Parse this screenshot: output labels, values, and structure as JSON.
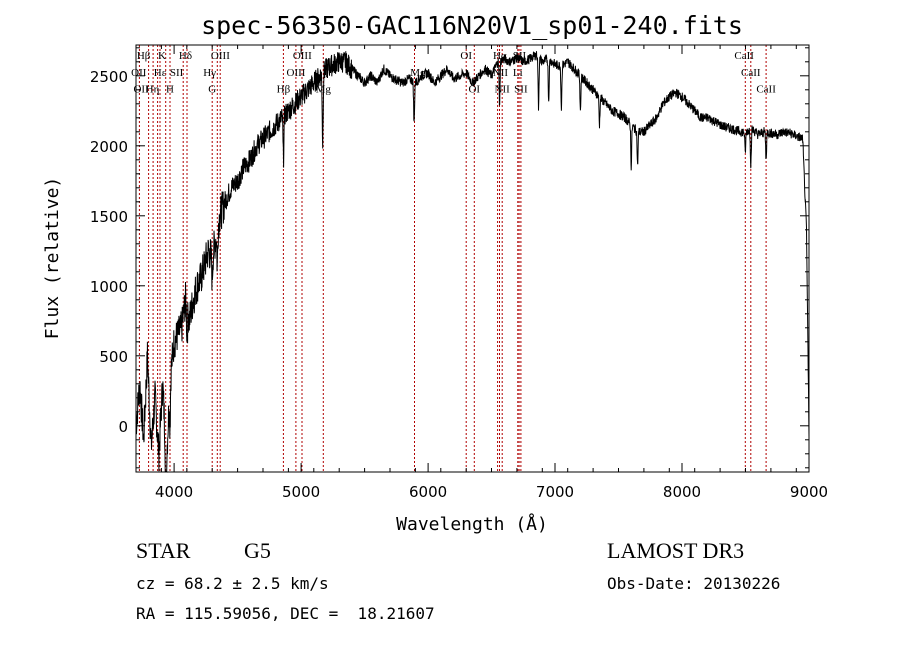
{
  "chart_data": {
    "type": "line",
    "title": "spec-56350-GAC116N20V1_sp01-240.fits",
    "xlabel": "Wavelength (Å)",
    "ylabel": "Flux (relative)",
    "xlim": [
      3700,
      9000
    ],
    "ylim": [
      -330,
      2720
    ],
    "xticks": [
      4000,
      5000,
      6000,
      7000,
      8000,
      9000
    ],
    "xtick_labels": [
      "4000",
      "5000",
      "6000",
      "7000",
      "8000",
      "9000"
    ],
    "yticks": [
      0,
      500,
      1000,
      1500,
      2000,
      2500
    ],
    "ytick_labels": [
      "0",
      "500",
      "1000",
      "1500",
      "2000",
      "2500"
    ],
    "series": [
      {
        "name": "flux",
        "x": [
          3700,
          3730,
          3760,
          3790,
          3820,
          3850,
          3880,
          3910,
          3940,
          3970,
          4000,
          4030,
          4060,
          4090,
          4120,
          4150,
          4180,
          4210,
          4240,
          4270,
          4300,
          4330,
          4360,
          4400,
          4450,
          4500,
          4550,
          4600,
          4650,
          4700,
          4750,
          4800,
          4850,
          4900,
          4950,
          5000,
          5050,
          5100,
          5150,
          5200,
          5250,
          5300,
          5350,
          5400,
          5450,
          5500,
          5550,
          5600,
          5650,
          5700,
          5750,
          5800,
          5850,
          5900,
          5950,
          6000,
          6050,
          6100,
          6150,
          6200,
          6250,
          6300,
          6350,
          6400,
          6450,
          6500,
          6550,
          6600,
          6650,
          6700,
          6750,
          6800,
          6850,
          6900,
          6950,
          7000,
          7050,
          7100,
          7150,
          7200,
          7250,
          7300,
          7350,
          7400,
          7450,
          7500,
          7550,
          7600,
          7650,
          7700,
          7750,
          7800,
          7850,
          7900,
          7950,
          8000,
          8050,
          8100,
          8150,
          8200,
          8250,
          8300,
          8350,
          8400,
          8450,
          8500,
          8550,
          8600,
          8650,
          8700,
          8750,
          8800,
          8850,
          8900,
          8950,
          8980,
          9000
        ],
        "y": [
          0,
          300,
          -100,
          500,
          -150,
          200,
          -200,
          300,
          -250,
          350,
          600,
          650,
          700,
          900,
          750,
          900,
          1000,
          1050,
          1150,
          1250,
          1200,
          1350,
          1500,
          1600,
          1700,
          1750,
          1850,
          1900,
          2000,
          2050,
          2100,
          2150,
          2200,
          2250,
          2300,
          2350,
          2400,
          2450,
          2500,
          2550,
          2580,
          2600,
          2600,
          2550,
          2500,
          2450,
          2500,
          2450,
          2550,
          2500,
          2470,
          2450,
          2480,
          2450,
          2500,
          2520,
          2450,
          2500,
          2550,
          2480,
          2500,
          2520,
          2450,
          2500,
          2550,
          2500,
          2600,
          2620,
          2600,
          2630,
          2600,
          2620,
          2650,
          2600,
          2620,
          2580,
          2570,
          2600,
          2550,
          2500,
          2450,
          2400,
          2350,
          2300,
          2250,
          2230,
          2200,
          2150,
          2100,
          2100,
          2150,
          2200,
          2300,
          2350,
          2380,
          2350,
          2300,
          2250,
          2200,
          2200,
          2180,
          2150,
          2130,
          2120,
          2100,
          2100,
          2120,
          2080,
          2100,
          2090,
          2080,
          2100,
          2090,
          2070,
          2050,
          1400,
          -50
        ]
      }
    ],
    "absorption_dips": [
      {
        "x": 3934,
        "depth": 300
      },
      {
        "x": 3968,
        "depth": 300
      },
      {
        "x": 4102,
        "depth": 200
      },
      {
        "x": 4300,
        "depth": 150
      },
      {
        "x": 4340,
        "depth": 250
      },
      {
        "x": 4861,
        "depth": 300
      },
      {
        "x": 5170,
        "depth": 500
      },
      {
        "x": 5890,
        "depth": 300
      },
      {
        "x": 6563,
        "depth": 300
      },
      {
        "x": 6870,
        "depth": 350
      },
      {
        "x": 6950,
        "depth": 300
      },
      {
        "x": 7050,
        "depth": 300
      },
      {
        "x": 7200,
        "depth": 250
      },
      {
        "x": 7350,
        "depth": 200
      },
      {
        "x": 7600,
        "depth": 300
      },
      {
        "x": 7650,
        "depth": 250
      },
      {
        "x": 8498,
        "depth": 150
      },
      {
        "x": 8542,
        "depth": 250
      },
      {
        "x": 8662,
        "depth": 200
      }
    ],
    "line_markers": [
      3727,
      3799,
      3835,
      3870,
      3889,
      3934,
      3968,
      4072,
      4102,
      4300,
      4340,
      4363,
      4861,
      4959,
      5007,
      5175,
      5893,
      6300,
      6364,
      6548,
      6563,
      6584,
      6707,
      6717,
      6731,
      8498,
      8542,
      8662
    ],
    "line_labels": [
      {
        "text": "Hβ",
        "x": 3760,
        "y": 2620
      },
      {
        "text": "K",
        "x": 3905,
        "y": 2620
      },
      {
        "text": "Hδ",
        "x": 4090,
        "y": 2620
      },
      {
        "text": "OIII",
        "x": 4365,
        "y": 2620
      },
      {
        "text": "OIII",
        "x": 5010,
        "y": 2620
      },
      {
        "text": "OI",
        "x": 6300,
        "y": 2620
      },
      {
        "text": "Hα",
        "x": 6565,
        "y": 2620
      },
      {
        "text": "SII",
        "x": 6720,
        "y": 2620
      },
      {
        "text": "CaII",
        "x": 8490,
        "y": 2620
      },
      {
        "text": "OII",
        "x": 3722,
        "y": 2500
      },
      {
        "text": "Hε",
        "x": 3890,
        "y": 2500
      },
      {
        "text": "SII",
        "x": 4020,
        "y": 2500
      },
      {
        "text": "Hγ",
        "x": 4280,
        "y": 2500
      },
      {
        "text": "OIII",
        "x": 4960,
        "y": 2500
      },
      {
        "text": "Mg",
        "x": 5920,
        "y": 2500
      },
      {
        "text": "NII",
        "x": 6570,
        "y": 2500
      },
      {
        "text": "Li",
        "x": 6707,
        "y": 2500
      },
      {
        "text": "CaII",
        "x": 8542,
        "y": 2500
      },
      {
        "text": "OII",
        "x": 3740,
        "y": 2380
      },
      {
        "text": "Hη",
        "x": 3830,
        "y": 2380
      },
      {
        "text": "H",
        "x": 3968,
        "y": 2380
      },
      {
        "text": "G",
        "x": 4300,
        "y": 2380
      },
      {
        "text": "Hβ",
        "x": 4861,
        "y": 2380
      },
      {
        "text": "Mg",
        "x": 5175,
        "y": 2380
      },
      {
        "text": "OI",
        "x": 6364,
        "y": 2380
      },
      {
        "text": "NII",
        "x": 6584,
        "y": 2380
      },
      {
        "text": "SII",
        "x": 6731,
        "y": 2380
      },
      {
        "text": "CaII",
        "x": 8662,
        "y": 2380
      }
    ],
    "colors": {
      "flux": "#000000",
      "markers": "#b00000",
      "axes": "#000000"
    }
  },
  "info": {
    "object_class": "STAR",
    "subclass": "G5",
    "cz": "cz = 68.2 ± 2.5 km/s",
    "coords": "RA = 115.59056, DEC =  18.21607",
    "survey": "LAMOST DR3",
    "obs_date": "Obs-Date: 20130226"
  }
}
